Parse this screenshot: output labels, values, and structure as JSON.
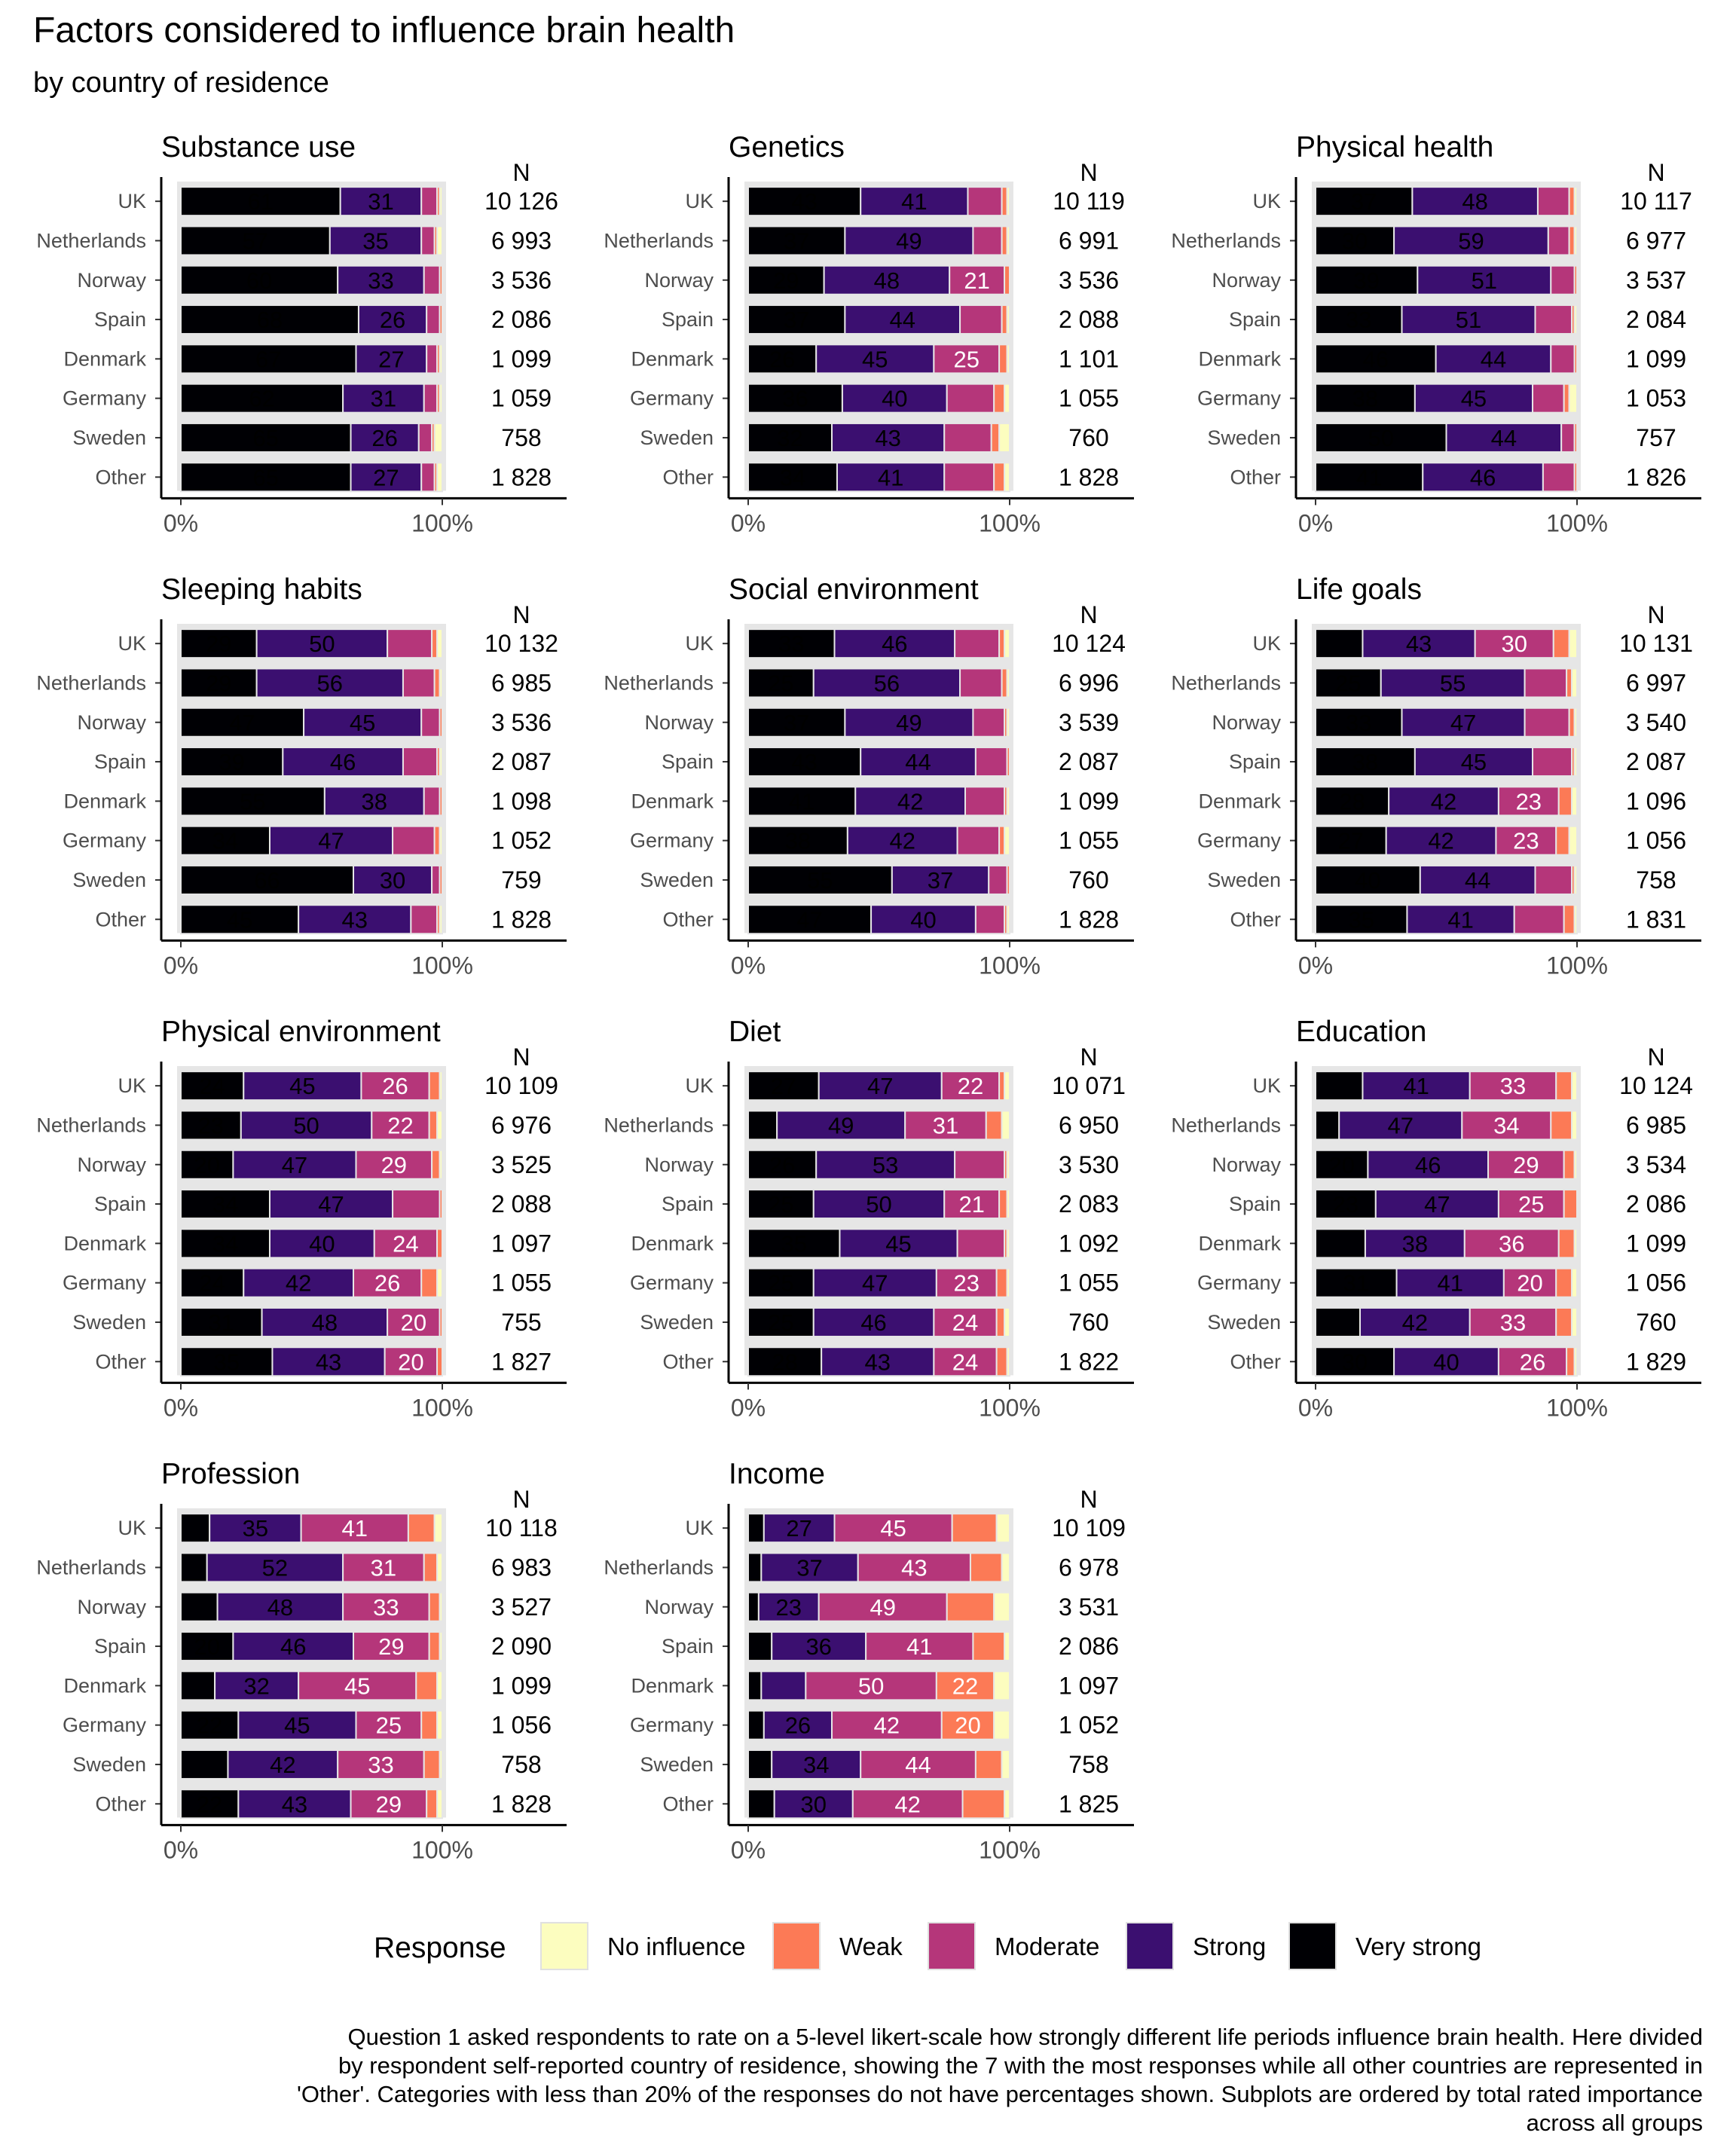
{
  "title": "Factors considered to influence brain health",
  "subtitle": "by country of residence",
  "caption": [
    "Question 1 asked respondents to rate on a 5-level likert-scale how strongly different life periods influence brain health. Here divided",
    "by respondent self-reported country of residence, showing the 7 with the most responses while all other countries are represented in",
    "'Other'. Categories with less than 20% of the responses do not have percentages shown. Subplots are ordered by total rated importance",
    "across all groups"
  ],
  "legend": {
    "title": "Response",
    "items": [
      {
        "label": "No influence",
        "color": "#fcfdbf"
      },
      {
        "label": "Weak",
        "color": "#fc7a56"
      },
      {
        "label": "Moderate",
        "color": "#b5367a"
      },
      {
        "label": "Strong",
        "color": "#3b0f70"
      },
      {
        "label": "Very strong",
        "color": "#000004"
      }
    ]
  },
  "chart_data": {
    "type": "bar",
    "orientation": "horizontal",
    "stacked": "percent",
    "n_label": "N",
    "x_ticks": [
      "0%",
      "100%"
    ],
    "xlim": [
      0,
      100
    ],
    "categories": [
      "UK",
      "Netherlands",
      "Norway",
      "Spain",
      "Denmark",
      "Germany",
      "Sweden",
      "Other"
    ],
    "series_order": [
      "Very strong",
      "Strong",
      "Moderate",
      "Weak",
      "No influence"
    ],
    "panels": [
      {
        "title": "Substance use",
        "n": [
          "10 126",
          "6 993",
          "3 536",
          "2 086",
          "1 099",
          "1 059",
          "758",
          "1 828"
        ],
        "values": [
          [
            61,
            31,
            6,
            1,
            1
          ],
          [
            57,
            35,
            5,
            1,
            2
          ],
          [
            60,
            33,
            6,
            1,
            0
          ],
          [
            68,
            26,
            5,
            1,
            0
          ],
          [
            67,
            27,
            4,
            1,
            1
          ],
          [
            62,
            31,
            5,
            1,
            1
          ],
          [
            65,
            26,
            5,
            1,
            3
          ],
          [
            65,
            27,
            5,
            1,
            2
          ]
        ]
      },
      {
        "title": "Genetics",
        "n": [
          "10 119",
          "6 991",
          "3 536",
          "2 088",
          "1 101",
          "1 055",
          "760",
          "1 828"
        ],
        "values": [
          [
            43,
            41,
            13,
            2,
            1
          ],
          [
            37,
            49,
            11,
            2,
            1
          ],
          [
            29,
            48,
            21,
            2,
            0
          ],
          [
            37,
            44,
            16,
            2,
            1
          ],
          [
            26,
            45,
            25,
            3,
            1
          ],
          [
            36,
            40,
            18,
            4,
            2
          ],
          [
            32,
            43,
            18,
            3,
            4
          ],
          [
            34,
            41,
            19,
            4,
            2
          ]
        ]
      },
      {
        "title": "Physical health",
        "n": [
          "10 117",
          "6 977",
          "3 537",
          "2 084",
          "1 099",
          "1 053",
          "757",
          "1 826"
        ],
        "values": [
          [
            37,
            48,
            12,
            2,
            1
          ],
          [
            30,
            59,
            8,
            2,
            1
          ],
          [
            39,
            51,
            9,
            1,
            0
          ],
          [
            33,
            51,
            14,
            1,
            1
          ],
          [
            46,
            44,
            9,
            1,
            0
          ],
          [
            38,
            45,
            12,
            2,
            3
          ],
          [
            50,
            44,
            5,
            1,
            0
          ],
          [
            41,
            46,
            12,
            1,
            0
          ]
        ]
      },
      {
        "title": "Sleeping habits",
        "n": [
          "10 132",
          "6 985",
          "3 536",
          "2 087",
          "1 098",
          "1 052",
          "759",
          "1 828"
        ],
        "values": [
          [
            29,
            50,
            17,
            2,
            2
          ],
          [
            29,
            56,
            12,
            2,
            1
          ],
          [
            47,
            45,
            7,
            1,
            0
          ],
          [
            39,
            46,
            13,
            1,
            1
          ],
          [
            55,
            38,
            6,
            1,
            0
          ],
          [
            34,
            47,
            16,
            2,
            1
          ],
          [
            66,
            30,
            3,
            1,
            0
          ],
          [
            45,
            43,
            10,
            1,
            1
          ]
        ]
      },
      {
        "title": "Social environment",
        "n": [
          "10 124",
          "6 996",
          "3 539",
          "2 087",
          "1 099",
          "1 055",
          "760",
          "1 828"
        ],
        "values": [
          [
            33,
            46,
            17,
            2,
            2
          ],
          [
            25,
            56,
            16,
            2,
            1
          ],
          [
            37,
            49,
            12,
            1,
            1
          ],
          [
            43,
            44,
            12,
            1,
            0
          ],
          [
            41,
            42,
            15,
            1,
            1
          ],
          [
            38,
            42,
            16,
            2,
            2
          ],
          [
            55,
            37,
            7,
            1,
            0
          ],
          [
            47,
            40,
            11,
            1,
            1
          ]
        ]
      },
      {
        "title": "Life goals",
        "n": [
          "10 131",
          "6 997",
          "3 540",
          "2 087",
          "1 096",
          "1 056",
          "758",
          "1 831"
        ],
        "values": [
          [
            18,
            43,
            30,
            6,
            3
          ],
          [
            25,
            55,
            16,
            2,
            2
          ],
          [
            33,
            47,
            17,
            2,
            1
          ],
          [
            38,
            45,
            15,
            1,
            1
          ],
          [
            28,
            42,
            23,
            5,
            2
          ],
          [
            27,
            42,
            23,
            5,
            3
          ],
          [
            40,
            44,
            14,
            1,
            1
          ],
          [
            35,
            41,
            19,
            4,
            1
          ]
        ]
      },
      {
        "title": "Physical environment",
        "n": [
          "10 109",
          "6 976",
          "3 525",
          "2 088",
          "1 097",
          "1 055",
          "755",
          "1 827"
        ],
        "values": [
          [
            24,
            45,
            26,
            4,
            1
          ],
          [
            23,
            50,
            22,
            3,
            2
          ],
          [
            20,
            47,
            29,
            3,
            1
          ],
          [
            34,
            47,
            18,
            1,
            0
          ],
          [
            34,
            40,
            24,
            2,
            0
          ],
          [
            24,
            42,
            26,
            6,
            2
          ],
          [
            31,
            48,
            20,
            1,
            0
          ],
          [
            35,
            43,
            20,
            2,
            0
          ]
        ]
      },
      {
        "title": "Diet",
        "n": [
          "10 071",
          "6 950",
          "3 530",
          "2 083",
          "1 092",
          "1 055",
          "760",
          "1 822"
        ],
        "values": [
          [
            27,
            47,
            22,
            2,
            2
          ],
          [
            11,
            49,
            31,
            6,
            3
          ],
          [
            26,
            53,
            19,
            1,
            1
          ],
          [
            25,
            50,
            21,
            3,
            1
          ],
          [
            35,
            45,
            18,
            1,
            1
          ],
          [
            25,
            47,
            23,
            4,
            1
          ],
          [
            25,
            46,
            24,
            3,
            2
          ],
          [
            28,
            43,
            24,
            4,
            1
          ]
        ]
      },
      {
        "title": "Education",
        "n": [
          "10 124",
          "6 985",
          "3 534",
          "2 086",
          "1 099",
          "1 056",
          "760",
          "1 829"
        ],
        "values": [
          [
            18,
            41,
            33,
            6,
            2
          ],
          [
            9,
            47,
            34,
            8,
            2
          ],
          [
            20,
            46,
            29,
            4,
            1
          ],
          [
            23,
            47,
            25,
            5,
            0
          ],
          [
            19,
            38,
            36,
            6,
            1
          ],
          [
            31,
            41,
            20,
            6,
            2
          ],
          [
            17,
            42,
            33,
            6,
            2
          ],
          [
            30,
            40,
            26,
            3,
            1
          ]
        ]
      },
      {
        "title": "Profession",
        "n": [
          "10 118",
          "6 983",
          "3 527",
          "2 090",
          "1 099",
          "1 056",
          "758",
          "1 828"
        ],
        "values": [
          [
            11,
            35,
            41,
            10,
            3
          ],
          [
            10,
            52,
            31,
            5,
            2
          ],
          [
            14,
            48,
            33,
            4,
            1
          ],
          [
            20,
            46,
            29,
            4,
            1
          ],
          [
            13,
            32,
            45,
            8,
            2
          ],
          [
            22,
            45,
            25,
            6,
            2
          ],
          [
            18,
            42,
            33,
            6,
            1
          ],
          [
            22,
            43,
            29,
            4,
            2
          ]
        ]
      },
      {
        "title": "Income",
        "n": [
          "10 109",
          "6 978",
          "3 531",
          "2 086",
          "1 097",
          "1 052",
          "758",
          "1 825"
        ],
        "values": [
          [
            6,
            27,
            45,
            17,
            5
          ],
          [
            5,
            37,
            43,
            12,
            3
          ],
          [
            4,
            23,
            49,
            18,
            6
          ],
          [
            9,
            36,
            41,
            12,
            2
          ],
          [
            5,
            17,
            50,
            22,
            6
          ],
          [
            6,
            26,
            42,
            20,
            6
          ],
          [
            9,
            34,
            44,
            10,
            3
          ],
          [
            10,
            30,
            42,
            16,
            2
          ]
        ]
      }
    ]
  }
}
